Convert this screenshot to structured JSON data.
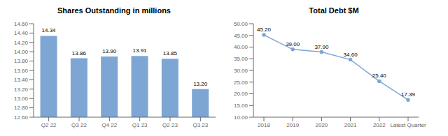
{
  "chart_data": [
    {
      "type": "bar",
      "title": "Shares Outstanding in millions",
      "categories": [
        "Q2 22",
        "Q3 22",
        "Q4 22",
        "Q1 23",
        "Q2 23",
        "Q3 23"
      ],
      "values": [
        14.34,
        13.86,
        13.9,
        13.91,
        13.85,
        13.2
      ],
      "value_labels": [
        "14.34",
        "13.86",
        "13.90",
        "13.91",
        "13.85",
        "13.20"
      ],
      "data_labels": true,
      "color": "#7EA6D4",
      "ylim": [
        12.6,
        14.6
      ],
      "yticks": [
        {
          "value": 12.6,
          "label": "12.60"
        },
        {
          "value": 12.8,
          "label": "12.80"
        },
        {
          "value": 13.0,
          "label": "13.00"
        },
        {
          "value": 13.2,
          "label": "13.20"
        },
        {
          "value": 13.4,
          "label": "13.40"
        },
        {
          "value": 13.6,
          "label": "13.60"
        },
        {
          "value": 13.8,
          "label": "13.80"
        },
        {
          "value": 14.0,
          "label": "14.00"
        },
        {
          "value": 14.2,
          "label": "14.20"
        },
        {
          "value": 14.4,
          "label": "14.40"
        },
        {
          "value": 14.6,
          "label": "14.60"
        }
      ]
    },
    {
      "type": "line",
      "title": "Total Debt $M",
      "categories": [
        "2018",
        "2019",
        "2020",
        "2021",
        "2022",
        "Latest Quarter"
      ],
      "values": [
        45.2,
        39.0,
        37.9,
        34.6,
        25.4,
        17.39
      ],
      "value_labels": [
        "45.20",
        "39.00",
        "37.90",
        "34.60",
        "25.40",
        "17.39"
      ],
      "data_labels": true,
      "color": "#7EA6D4",
      "marker": "circle",
      "ylim": [
        10.0,
        50.0
      ],
      "yticks": [
        {
          "value": 10,
          "label": "10.00"
        },
        {
          "value": 15,
          "label": "15.00"
        },
        {
          "value": 20,
          "label": "20.00"
        },
        {
          "value": 25,
          "label": "25.00"
        },
        {
          "value": 30,
          "label": "30.00"
        },
        {
          "value": 35,
          "label": "35.00"
        },
        {
          "value": 40,
          "label": "40.00"
        },
        {
          "value": 45,
          "label": "45.00"
        },
        {
          "value": 50,
          "label": "50.00"
        }
      ]
    }
  ]
}
